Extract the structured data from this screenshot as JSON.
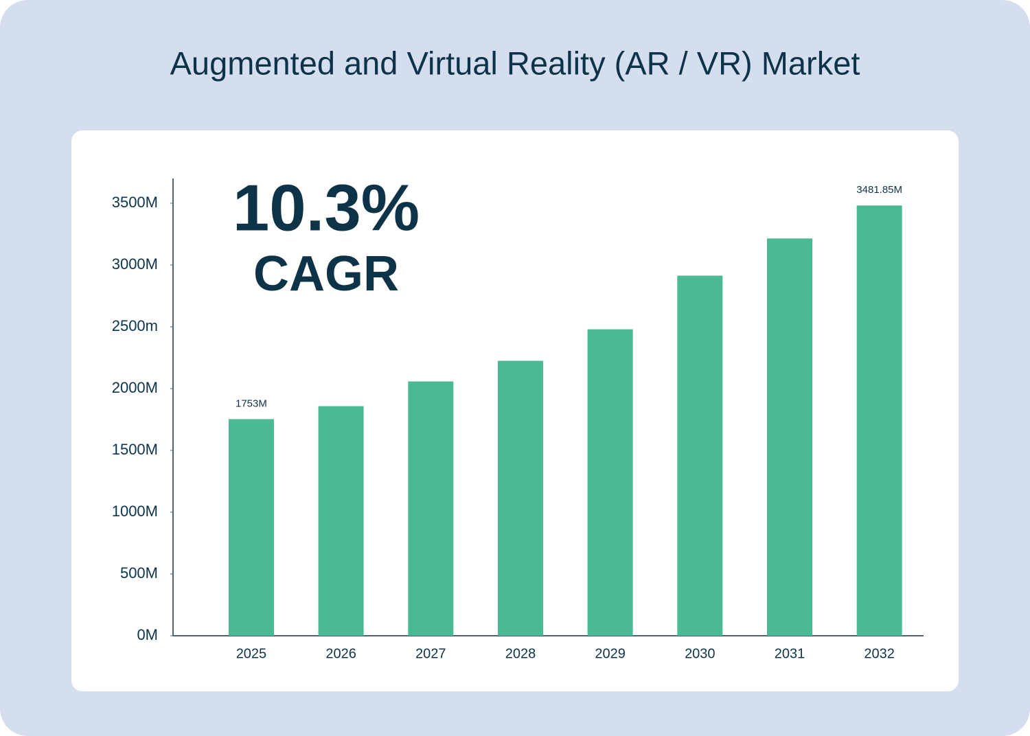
{
  "chart_data": {
    "type": "bar",
    "title": "Augmented and Virtual Reality (AR / VR) Market",
    "annotations": [
      "10.3%",
      "CAGR"
    ],
    "categories": [
      "2025",
      "2026",
      "2027",
      "2028",
      "2029",
      "2030",
      "2031",
      "2032"
    ],
    "values": [
      1753,
      1858,
      2058,
      2225,
      2480,
      2914,
      3215,
      3481.85
    ],
    "value_labels": [
      "1753M",
      null,
      null,
      null,
      null,
      null,
      null,
      "3481.85M"
    ],
    "color": "#4bb896",
    "ylim": [
      0,
      3700
    ],
    "yticks": [
      {
        "value": 0,
        "label": "0M"
      },
      {
        "value": 500,
        "label": "500M"
      },
      {
        "value": 1000,
        "label": "1000M"
      },
      {
        "value": 1500,
        "label": "1500M"
      },
      {
        "value": 2000,
        "label": "2000M"
      },
      {
        "value": 2500,
        "label": "2500m"
      },
      {
        "value": 3000,
        "label": "3000M"
      },
      {
        "value": 3500,
        "label": "3500M"
      }
    ],
    "grid": false
  }
}
